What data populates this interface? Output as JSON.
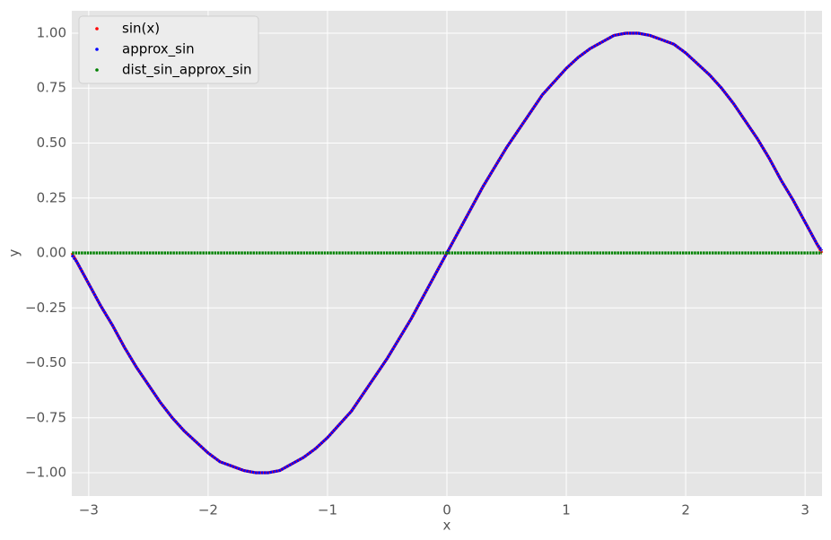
{
  "chart_data": {
    "type": "scatter",
    "xlabel": "x",
    "ylabel": "y",
    "x": [
      -3.14,
      -3.1,
      -3.0,
      -2.9,
      -2.8,
      -2.7,
      -2.6,
      -2.5,
      -2.4,
      -2.3,
      -2.2,
      -2.1,
      -2.0,
      -1.9,
      -1.8,
      -1.7,
      -1.6,
      -1.5,
      -1.4,
      -1.3,
      -1.2,
      -1.1,
      -1.0,
      -0.9,
      -0.8,
      -0.7,
      -0.6,
      -0.5,
      -0.4,
      -0.3,
      -0.2,
      -0.1,
      0,
      0.1,
      0.2,
      0.3,
      0.4,
      0.5,
      0.6,
      0.7,
      0.8,
      0.9,
      1.0,
      1.1,
      1.2,
      1.3,
      1.4,
      1.5,
      1.6,
      1.7,
      1.8,
      1.9,
      2.0,
      2.1,
      2.2,
      2.3,
      2.4,
      2.5,
      2.6,
      2.7,
      2.8,
      2.9,
      3.0,
      3.1,
      3.14
    ],
    "series": [
      {
        "name": "sin(x)",
        "color": "#ff0000",
        "values": [
          0,
          -0.04,
          -0.14,
          -0.24,
          -0.33,
          -0.43,
          -0.52,
          -0.6,
          -0.68,
          -0.75,
          -0.81,
          -0.86,
          -0.91,
          -0.95,
          -0.97,
          -0.99,
          -1.0,
          -1.0,
          -0.99,
          -0.96,
          -0.93,
          -0.89,
          -0.84,
          -0.78,
          -0.72,
          -0.64,
          -0.56,
          -0.48,
          -0.39,
          -0.3,
          -0.2,
          -0.1,
          0,
          0.1,
          0.2,
          0.3,
          0.39,
          0.48,
          0.56,
          0.64,
          0.72,
          0.78,
          0.84,
          0.89,
          0.93,
          0.96,
          0.99,
          1.0,
          1.0,
          0.99,
          0.97,
          0.95,
          0.91,
          0.86,
          0.81,
          0.75,
          0.68,
          0.6,
          0.52,
          0.43,
          0.33,
          0.24,
          0.14,
          0.04,
          0
        ]
      },
      {
        "name": "approx_sin",
        "color": "#0000ff",
        "values": [
          -0.01,
          -0.04,
          -0.14,
          -0.24,
          -0.33,
          -0.43,
          -0.52,
          -0.6,
          -0.68,
          -0.75,
          -0.81,
          -0.86,
          -0.91,
          -0.95,
          -0.97,
          -0.99,
          -1.0,
          -1.0,
          -0.99,
          -0.96,
          -0.93,
          -0.89,
          -0.84,
          -0.78,
          -0.72,
          -0.64,
          -0.56,
          -0.48,
          -0.39,
          -0.3,
          -0.2,
          -0.1,
          0,
          0.1,
          0.2,
          0.3,
          0.39,
          0.48,
          0.56,
          0.64,
          0.72,
          0.78,
          0.84,
          0.89,
          0.93,
          0.96,
          0.99,
          1.0,
          1.0,
          0.99,
          0.97,
          0.95,
          0.91,
          0.86,
          0.81,
          0.75,
          0.68,
          0.6,
          0.52,
          0.43,
          0.33,
          0.24,
          0.14,
          0.04,
          0.01
        ]
      },
      {
        "name": "dist_sin_approx_sin",
        "color": "#008000",
        "values": [
          0,
          0,
          0,
          0,
          0,
          0,
          0,
          0,
          0,
          0,
          0,
          0,
          0,
          0,
          0,
          0,
          0,
          0,
          0,
          0,
          0,
          0,
          0,
          0,
          0,
          0,
          0,
          0,
          0,
          0,
          0,
          0,
          0,
          0,
          0,
          0,
          0,
          0,
          0,
          0,
          0,
          0,
          0,
          0,
          0,
          0,
          0,
          0,
          0,
          0,
          0,
          0,
          0,
          0,
          0,
          0,
          0,
          0,
          0,
          0,
          0,
          0,
          0,
          0,
          0
        ]
      }
    ],
    "xlim": [
      -3.1416,
      3.1416
    ],
    "ylim": [
      -1.106,
      1.102
    ],
    "xticks": [
      {
        "value": -3,
        "label": "−3"
      },
      {
        "value": -2,
        "label": "−2"
      },
      {
        "value": -1,
        "label": "−1"
      },
      0,
      1,
      2,
      3
    ],
    "yticks": [
      {
        "value": -1,
        "label": "−1.00"
      },
      {
        "value": -0.75,
        "label": "−0.75"
      },
      {
        "value": -0.5,
        "label": "−0.50"
      },
      {
        "value": -0.25,
        "label": "−0.25"
      },
      {
        "value": 0,
        "label": "0.00"
      },
      {
        "value": 0.25,
        "label": "0.25"
      },
      {
        "value": 0.5,
        "label": "0.50"
      },
      {
        "value": 0.75,
        "label": "0.75"
      },
      {
        "value": 1,
        "label": "1.00"
      }
    ],
    "grid": true,
    "legend": "upper left"
  }
}
